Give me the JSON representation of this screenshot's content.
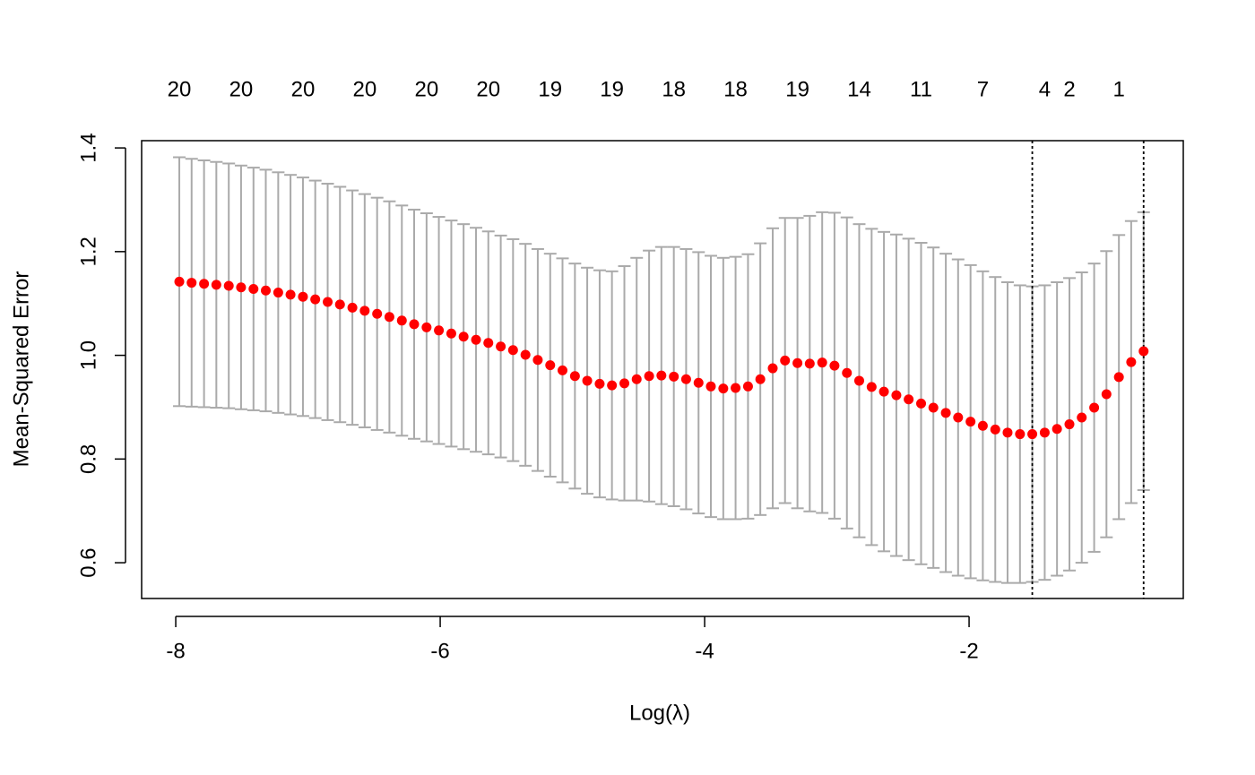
{
  "chart_data": {
    "type": "errorbar",
    "xlabel": "Log(λ)",
    "ylabel": "Mean-Squared Error",
    "xlim": [
      -8.258,
      -0.38
    ],
    "ylim": [
      0.531,
      1.414
    ],
    "xticks": [
      -8,
      -6,
      -4,
      -2
    ],
    "yticks": [
      0.6,
      0.8,
      {
        "value": 1.0,
        "label": "1.0"
      },
      1.2,
      1.4
    ],
    "x2ticks": [
      {
        "value": -7.973,
        "label": "20"
      },
      {
        "value": -7.506,
        "label": "20"
      },
      {
        "value": -7.038,
        "label": "20"
      },
      {
        "value": -6.571,
        "label": "20"
      },
      {
        "value": -6.103,
        "label": "20"
      },
      {
        "value": -5.636,
        "label": "20"
      },
      {
        "value": -5.168,
        "label": "19"
      },
      {
        "value": -4.701,
        "label": "19"
      },
      {
        "value": -4.233,
        "label": "18"
      },
      {
        "value": -3.766,
        "label": "18"
      },
      {
        "value": -3.298,
        "label": "19"
      },
      {
        "value": -2.831,
        "label": "14"
      },
      {
        "value": -2.363,
        "label": "11"
      },
      {
        "value": -1.896,
        "label": "7"
      },
      {
        "value": -1.428,
        "label": "4"
      },
      {
        "value": -1.241,
        "label": "2"
      },
      {
        "value": -0.867,
        "label": "1"
      }
    ],
    "vlines": [
      -1.522,
      -0.68
    ],
    "point_color": "#ff0000",
    "errorbar_color": "#aaaaaa",
    "vline_color": "#000000",
    "x": [
      -7.973,
      -7.88,
      -7.786,
      -7.693,
      -7.599,
      -7.506,
      -7.412,
      -7.319,
      -7.225,
      -7.132,
      -7.038,
      -6.945,
      -6.851,
      -6.758,
      -6.664,
      -6.571,
      -6.477,
      -6.384,
      -6.29,
      -6.197,
      -6.103,
      -6.01,
      -5.916,
      -5.823,
      -5.729,
      -5.636,
      -5.542,
      -5.449,
      -5.355,
      -5.262,
      -5.168,
      -5.075,
      -4.981,
      -4.888,
      -4.794,
      -4.701,
      -4.607,
      -4.514,
      -4.42,
      -4.327,
      -4.233,
      -4.14,
      -4.046,
      -3.953,
      -3.859,
      -3.766,
      -3.672,
      -3.579,
      -3.485,
      -3.392,
      -3.298,
      -3.205,
      -3.111,
      -3.018,
      -2.924,
      -2.831,
      -2.737,
      -2.644,
      -2.55,
      -2.457,
      -2.363,
      -2.27,
      -2.176,
      -2.083,
      -1.989,
      -1.896,
      -1.802,
      -1.709,
      -1.615,
      -1.522,
      -1.428,
      -1.335,
      -1.241,
      -1.148,
      -1.054,
      -0.961,
      -0.867,
      -0.774,
      -0.68
    ],
    "values": [
      1.142,
      1.14,
      1.138,
      1.136,
      1.134,
      1.131,
      1.128,
      1.125,
      1.121,
      1.117,
      1.113,
      1.108,
      1.103,
      1.098,
      1.092,
      1.086,
      1.08,
      1.074,
      1.067,
      1.06,
      1.054,
      1.048,
      1.042,
      1.036,
      1.03,
      1.024,
      1.017,
      1.01,
      1.001,
      0.991,
      0.981,
      0.971,
      0.96,
      0.951,
      0.945,
      0.942,
      0.946,
      0.954,
      0.96,
      0.961,
      0.959,
      0.954,
      0.947,
      0.94,
      0.936,
      0.937,
      0.94,
      0.954,
      0.975,
      0.99,
      0.985,
      0.984,
      0.986,
      0.98,
      0.966,
      0.951,
      0.939,
      0.93,
      0.923,
      0.915,
      0.907,
      0.899,
      0.889,
      0.88,
      0.872,
      0.864,
      0.857,
      0.851,
      0.848,
      0.848,
      0.851,
      0.858,
      0.867,
      0.88,
      0.899,
      0.925,
      0.958,
      0.987,
      1.008
    ],
    "errors": [
      0.24,
      0.239,
      0.238,
      0.237,
      0.236,
      0.235,
      0.234,
      0.233,
      0.232,
      0.231,
      0.23,
      0.229,
      0.228,
      0.227,
      0.226,
      0.225,
      0.224,
      0.223,
      0.222,
      0.221,
      0.22,
      0.219,
      0.218,
      0.217,
      0.216,
      0.215,
      0.214,
      0.214,
      0.214,
      0.214,
      0.215,
      0.216,
      0.217,
      0.218,
      0.219,
      0.22,
      0.226,
      0.234,
      0.242,
      0.248,
      0.25,
      0.251,
      0.252,
      0.252,
      0.252,
      0.253,
      0.255,
      0.262,
      0.27,
      0.275,
      0.28,
      0.285,
      0.29,
      0.295,
      0.3,
      0.302,
      0.305,
      0.308,
      0.31,
      0.31,
      0.31,
      0.309,
      0.307,
      0.305,
      0.302,
      0.298,
      0.294,
      0.29,
      0.287,
      0.285,
      0.284,
      0.283,
      0.282,
      0.28,
      0.278,
      0.276,
      0.274,
      0.272,
      0.268
    ]
  }
}
